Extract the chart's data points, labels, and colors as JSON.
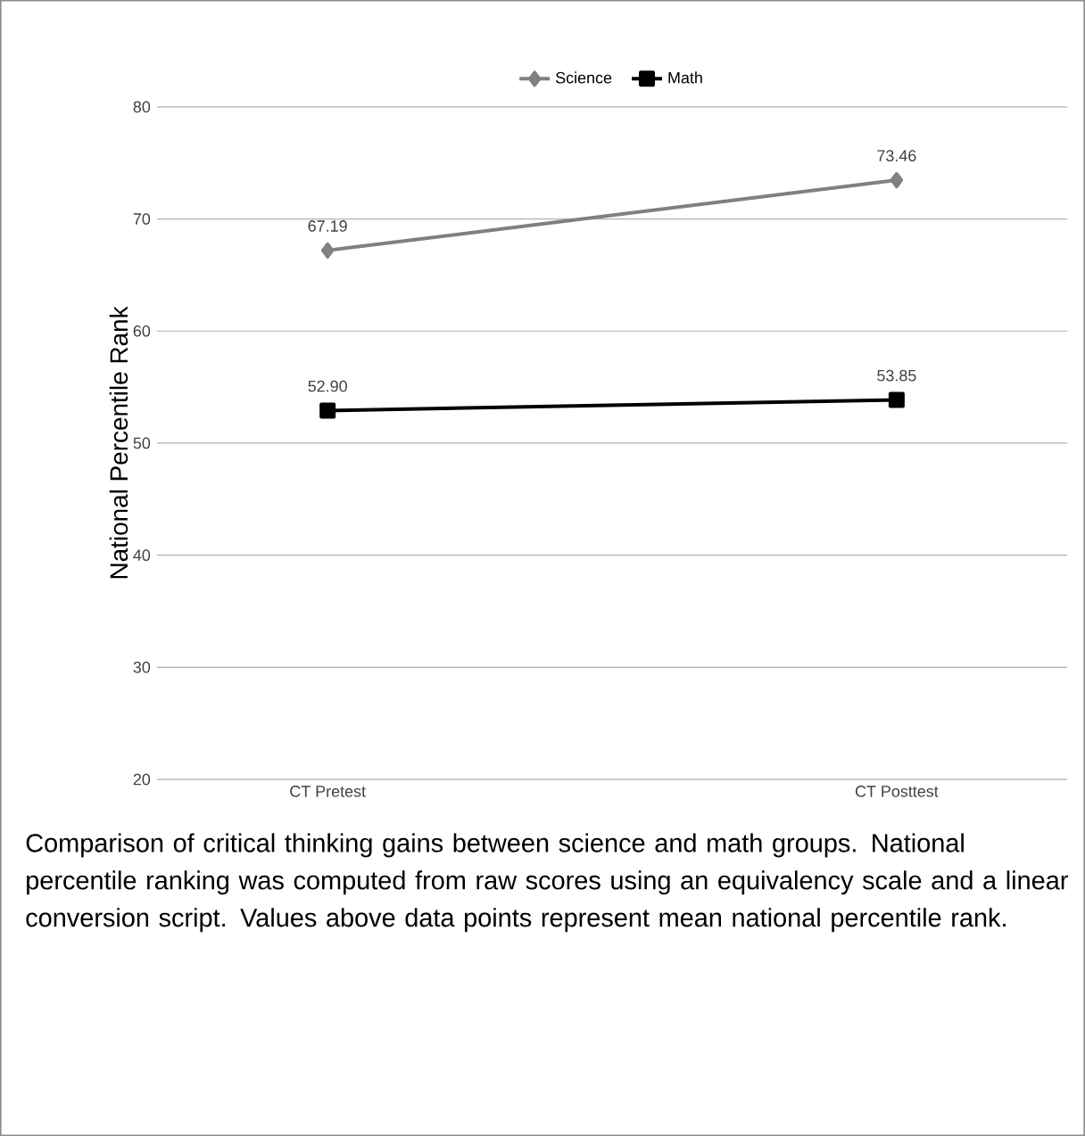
{
  "chart_data": {
    "type": "line",
    "ylabel": "National Percentile Rank",
    "categories": [
      "CT Pretest",
      "CT Posttest"
    ],
    "series": [
      {
        "name": "Science",
        "color": "#808080",
        "marker": "diamond",
        "values": [
          67.19,
          73.46
        ],
        "value_labels": [
          "67.19",
          "73.46"
        ]
      },
      {
        "name": "Math",
        "color": "#000000",
        "marker": "square",
        "values": [
          52.9,
          53.85
        ],
        "value_labels": [
          "52.90",
          "53.85"
        ]
      }
    ],
    "ylim": [
      20,
      80
    ],
    "yticks": [
      20,
      30,
      40,
      50,
      60,
      70,
      80
    ],
    "grid": "y",
    "legend": "top",
    "annotations": [
      "Comparison of critical thinking gains between science and math groups. National percentile ranking was computed from raw scores using an equivalency scale and a linear conversion script. Values above data points represent mean national percentile rank."
    ]
  }
}
